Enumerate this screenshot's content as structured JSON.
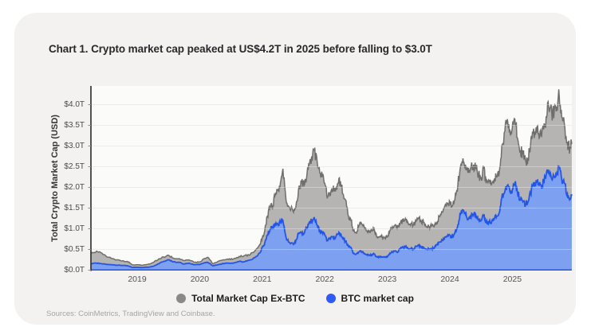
{
  "title": "Chart 1. Crypto market cap peaked at US$4.2T in 2025 before falling to $3.0T",
  "sources": "Sources: CoinMetrics, TradingView and Coinbase.",
  "y_axis": {
    "label": "Total Crypto Market Cap (USD)",
    "ticks": [
      "$4.0T",
      "$3.5T",
      "$3.0T",
      "$2.5T",
      "$2.0T",
      "$1.5T",
      "$1.0T",
      "$0.5T",
      "$0.0T"
    ]
  },
  "x_axis": {
    "ticks": [
      "2019",
      "2020",
      "2021",
      "2022",
      "2023",
      "2024",
      "2025"
    ]
  },
  "legend": {
    "items": [
      {
        "label": "Total Market Cap Ex-BTC",
        "color": "#8a8988"
      },
      {
        "label": "BTC market cap",
        "color": "#2e5bf7"
      }
    ]
  },
  "colors": {
    "card_background": "#f3f2f0",
    "plot_background": "#fbfbfa",
    "grid_line": "#e4e3e1",
    "axis_line": "#2c2b29",
    "btc_fill": "#7da0f0",
    "btc_line": "#2355e8",
    "exbtc_fill": "#b5b4b2",
    "exbtc_line": "#6f6e6a"
  },
  "chart_data": {
    "type": "area",
    "stacked": true,
    "title": "Chart 1. Crypto market cap peaked at US$4.2T in 2025 before falling to $3.0T",
    "ylabel": "Total Crypto Market Cap (USD)",
    "ylim": [
      0,
      4.4
    ],
    "ytick_step_trillions": 0.5,
    "grid": "horizontal",
    "legend_position": "bottom",
    "x_unit": "decimal year",
    "stack_note": "total crypto market cap = BTC market cap + Ex-BTC; top of gray band traces the total (peak ~$4.2T in Oct 2025, ends ~$3.0T; BTC peak ~$2.5T, ends ~$1.8T)",
    "x": [
      2018.26,
      2018.35,
      2018.42,
      2018.5,
      2018.58,
      2018.67,
      2018.75,
      2018.83,
      2018.88,
      2018.92,
      2019.0,
      2019.08,
      2019.17,
      2019.25,
      2019.33,
      2019.42,
      2019.5,
      2019.58,
      2019.67,
      2019.75,
      2019.83,
      2019.92,
      2020.0,
      2020.08,
      2020.13,
      2020.21,
      2020.29,
      2020.38,
      2020.46,
      2020.54,
      2020.63,
      2020.71,
      2020.79,
      2020.88,
      2020.96,
      2021.0,
      2021.04,
      2021.08,
      2021.13,
      2021.17,
      2021.21,
      2021.25,
      2021.29,
      2021.33,
      2021.38,
      2021.42,
      2021.5,
      2021.54,
      2021.58,
      2021.63,
      2021.67,
      2021.71,
      2021.75,
      2021.79,
      2021.83,
      2021.88,
      2021.92,
      2021.96,
      2022.0,
      2022.04,
      2022.08,
      2022.13,
      2022.17,
      2022.21,
      2022.25,
      2022.29,
      2022.33,
      2022.38,
      2022.42,
      2022.46,
      2022.5,
      2022.54,
      2022.58,
      2022.63,
      2022.67,
      2022.71,
      2022.75,
      2022.79,
      2022.83,
      2022.88,
      2022.92,
      2022.96,
      2023.0,
      2023.04,
      2023.08,
      2023.13,
      2023.17,
      2023.21,
      2023.25,
      2023.29,
      2023.33,
      2023.38,
      2023.42,
      2023.46,
      2023.5,
      2023.54,
      2023.58,
      2023.63,
      2023.67,
      2023.71,
      2023.75,
      2023.79,
      2023.83,
      2023.88,
      2023.92,
      2023.96,
      2024.0,
      2024.04,
      2024.08,
      2024.13,
      2024.17,
      2024.21,
      2024.25,
      2024.29,
      2024.33,
      2024.38,
      2024.42,
      2024.46,
      2024.5,
      2024.54,
      2024.58,
      2024.63,
      2024.67,
      2024.71,
      2024.75,
      2024.79,
      2024.83,
      2024.88,
      2024.92,
      2024.96,
      2025.0,
      2025.04,
      2025.08,
      2025.13,
      2025.17,
      2025.21,
      2025.25,
      2025.29,
      2025.33,
      2025.38,
      2025.42,
      2025.46,
      2025.5,
      2025.54,
      2025.58,
      2025.63,
      2025.67,
      2025.71,
      2025.75,
      2025.79,
      2025.83,
      2025.88,
      2025.92,
      2025.95
    ],
    "series": [
      {
        "name": "BTC market cap",
        "line_color": "#2355e8",
        "fill_color": "#7da0f0",
        "values": [
          0.16,
          0.17,
          0.16,
          0.14,
          0.13,
          0.12,
          0.115,
          0.11,
          0.09,
          0.066,
          0.068,
          0.064,
          0.072,
          0.09,
          0.15,
          0.21,
          0.25,
          0.2,
          0.19,
          0.15,
          0.17,
          0.13,
          0.134,
          0.18,
          0.19,
          0.105,
          0.13,
          0.16,
          0.17,
          0.17,
          0.21,
          0.2,
          0.24,
          0.3,
          0.42,
          0.55,
          0.65,
          0.85,
          1.0,
          1.05,
          1.1,
          1.1,
          1.15,
          1.2,
          0.8,
          0.68,
          0.62,
          0.73,
          0.88,
          0.9,
          0.88,
          1.02,
          1.15,
          1.2,
          1.28,
          1.08,
          0.95,
          0.9,
          0.85,
          0.72,
          0.75,
          0.8,
          0.78,
          0.87,
          0.88,
          0.76,
          0.7,
          0.57,
          0.55,
          0.4,
          0.38,
          0.43,
          0.46,
          0.41,
          0.37,
          0.37,
          0.37,
          0.39,
          0.32,
          0.32,
          0.32,
          0.31,
          0.32,
          0.41,
          0.44,
          0.47,
          0.44,
          0.53,
          0.55,
          0.57,
          0.52,
          0.52,
          0.5,
          0.58,
          0.59,
          0.57,
          0.55,
          0.5,
          0.51,
          0.52,
          0.53,
          0.62,
          0.68,
          0.72,
          0.8,
          0.83,
          0.85,
          0.78,
          0.9,
          1.1,
          1.35,
          1.45,
          1.35,
          1.22,
          1.3,
          1.35,
          1.32,
          1.22,
          1.2,
          1.32,
          1.15,
          1.18,
          1.17,
          1.25,
          1.3,
          1.38,
          1.75,
          1.9,
          2.05,
          1.9,
          1.95,
          2.1,
          1.9,
          1.7,
          1.65,
          1.6,
          1.65,
          1.85,
          2.05,
          2.15,
          2.1,
          2.05,
          2.15,
          2.3,
          2.35,
          2.2,
          2.25,
          2.35,
          2.5,
          2.2,
          2.1,
          1.85,
          1.75,
          1.8
        ]
      },
      {
        "name": "Total Market Cap Ex-BTC",
        "line_color": "#6f6e6a",
        "fill_color": "#b5b4b2",
        "values": [
          0.24,
          0.29,
          0.26,
          0.2,
          0.16,
          0.13,
          0.105,
          0.1,
          0.09,
          0.064,
          0.062,
          0.056,
          0.068,
          0.09,
          0.1,
          0.11,
          0.11,
          0.09,
          0.09,
          0.08,
          0.08,
          0.06,
          0.066,
          0.1,
          0.12,
          0.055,
          0.08,
          0.09,
          0.09,
          0.1,
          0.12,
          0.15,
          0.12,
          0.16,
          0.2,
          0.23,
          0.3,
          0.45,
          0.55,
          0.5,
          0.75,
          0.85,
          0.95,
          1.25,
          0.9,
          0.87,
          0.78,
          0.82,
          1.07,
          1.2,
          1.17,
          1.23,
          1.4,
          1.55,
          1.62,
          1.52,
          1.4,
          1.35,
          1.25,
          1.03,
          1.05,
          1.15,
          1.12,
          1.23,
          1.27,
          1.09,
          1.0,
          0.73,
          0.65,
          0.55,
          0.52,
          0.62,
          0.69,
          0.64,
          0.58,
          0.58,
          0.58,
          0.61,
          0.48,
          0.48,
          0.48,
          0.47,
          0.48,
          0.54,
          0.61,
          0.63,
          0.61,
          0.62,
          0.65,
          0.68,
          0.63,
          0.61,
          0.6,
          0.6,
          0.66,
          0.63,
          0.6,
          0.55,
          0.54,
          0.55,
          0.52,
          0.53,
          0.62,
          0.68,
          0.75,
          0.77,
          0.8,
          0.77,
          0.8,
          1.0,
          1.15,
          1.25,
          1.2,
          1.13,
          1.15,
          1.2,
          1.13,
          1.08,
          1.05,
          1.13,
          0.95,
          0.97,
          0.93,
          0.95,
          0.95,
          0.97,
          1.25,
          1.45,
          1.6,
          1.5,
          1.5,
          1.55,
          1.3,
          1.2,
          1.15,
          1.05,
          1.05,
          1.15,
          1.25,
          1.3,
          1.2,
          1.2,
          1.25,
          1.4,
          1.6,
          1.6,
          1.6,
          1.6,
          1.7,
          1.5,
          1.45,
          1.25,
          1.2,
          1.25
        ]
      }
    ]
  }
}
